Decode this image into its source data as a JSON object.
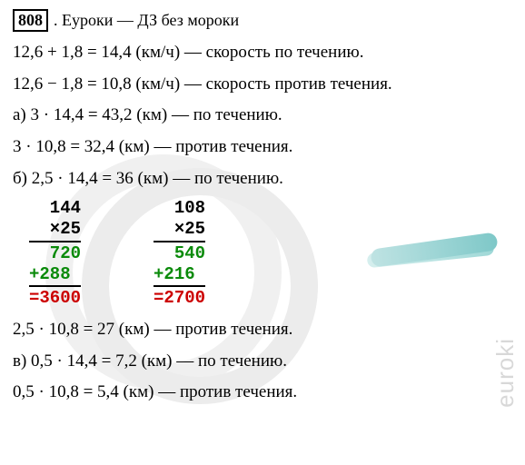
{
  "header": {
    "number": "808",
    "site": ". Еуроки  —  ДЗ без мороки"
  },
  "lines": {
    "l1": "12,6 + 1,8 = 14,4 (км/ч) — скорость по течению.",
    "l2": "12,6 − 1,8 = 10,8 (км/ч) — скорость против течения.",
    "l3": "а) 3 · 14,4 = 43,2 (км) — по течению.",
    "l4": "3 · 10,8 = 32,4 (км) — против течения.",
    "l5": "б) 2,5 · 14,4 = 36 (км) — по течению.",
    "l6": "2,5 · 10,8 = 27 (км) — против течения.",
    "l7": "в) 0,5 · 14,4 = 7,2 (км) — по течению.",
    "l8": "0,5 · 10,8 = 5,4 (км) — против течения."
  },
  "calc": {
    "left": {
      "n1": " 144",
      "n2": " ×25",
      "p1": " 720",
      "p2": "+288 ",
      "res": "=3600"
    },
    "right": {
      "n1": " 108",
      "n2": " ×25",
      "p1": " 540",
      "p2": "+216 ",
      "res": "=2700"
    }
  },
  "watermark": "euroki",
  "colors": {
    "green": "#0a8a0a",
    "red": "#cc0000",
    "black": "#000000",
    "wm_gray": "#d8d8d8",
    "circle_gray": "#f0f0f0"
  },
  "fonts": {
    "body_family": "Georgia, Times New Roman, serif",
    "mono_family": "Courier New, monospace",
    "body_size_pt": 14,
    "mono_size_pt": 14
  }
}
